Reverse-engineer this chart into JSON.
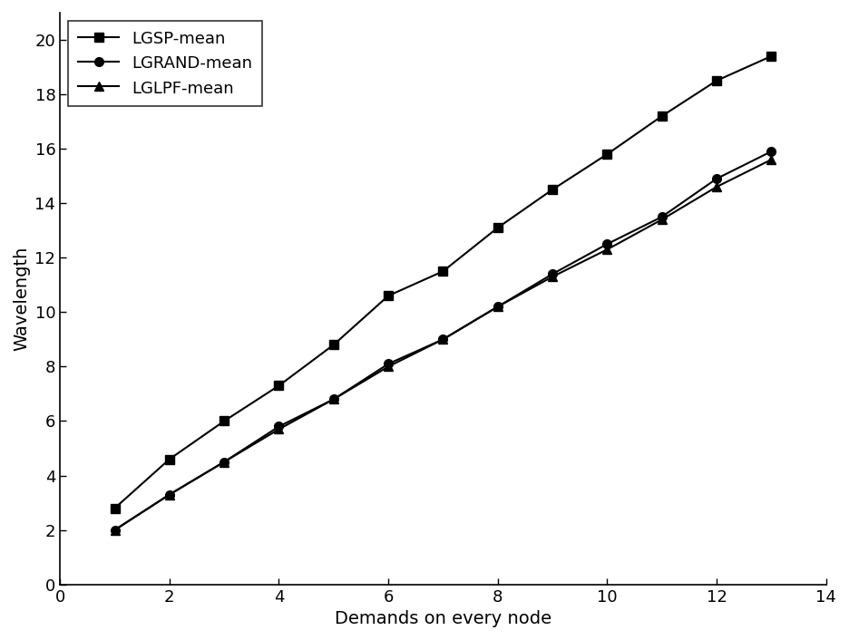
{
  "x": [
    1,
    2,
    3,
    4,
    5,
    6,
    7,
    8,
    9,
    10,
    11,
    12,
    13
  ],
  "lgsp_y": [
    2.8,
    4.6,
    6.0,
    7.3,
    8.8,
    10.6,
    11.5,
    13.1,
    14.5,
    15.8,
    17.2,
    18.5,
    19.4
  ],
  "lgrand_y": [
    2.0,
    3.3,
    4.5,
    5.8,
    6.8,
    8.1,
    9.0,
    10.2,
    11.4,
    12.5,
    13.5,
    14.9,
    15.9
  ],
  "lglpf_y": [
    2.0,
    3.3,
    4.5,
    5.7,
    6.8,
    8.0,
    9.0,
    10.2,
    11.3,
    12.3,
    13.4,
    14.6,
    15.6
  ],
  "xlabel": "Demands on every node",
  "ylabel": "Wavelength",
  "xlim": [
    0,
    14
  ],
  "ylim": [
    0,
    21
  ],
  "xticks": [
    0,
    2,
    4,
    6,
    8,
    10,
    12,
    14
  ],
  "yticks": [
    0,
    2,
    4,
    6,
    8,
    10,
    12,
    14,
    16,
    18,
    20
  ],
  "legend_labels": [
    "LGSP-mean",
    "LGRAND-mean",
    "LGLPF-mean"
  ],
  "line_color": "#000000",
  "marker_LGSP": "s",
  "marker_LGRAND": "o",
  "marker_LGLPF": "^",
  "marker_size": 7,
  "linewidth": 1.5,
  "xlabel_fontsize": 14,
  "ylabel_fontsize": 14,
  "tick_fontsize": 13,
  "legend_fontsize": 13
}
